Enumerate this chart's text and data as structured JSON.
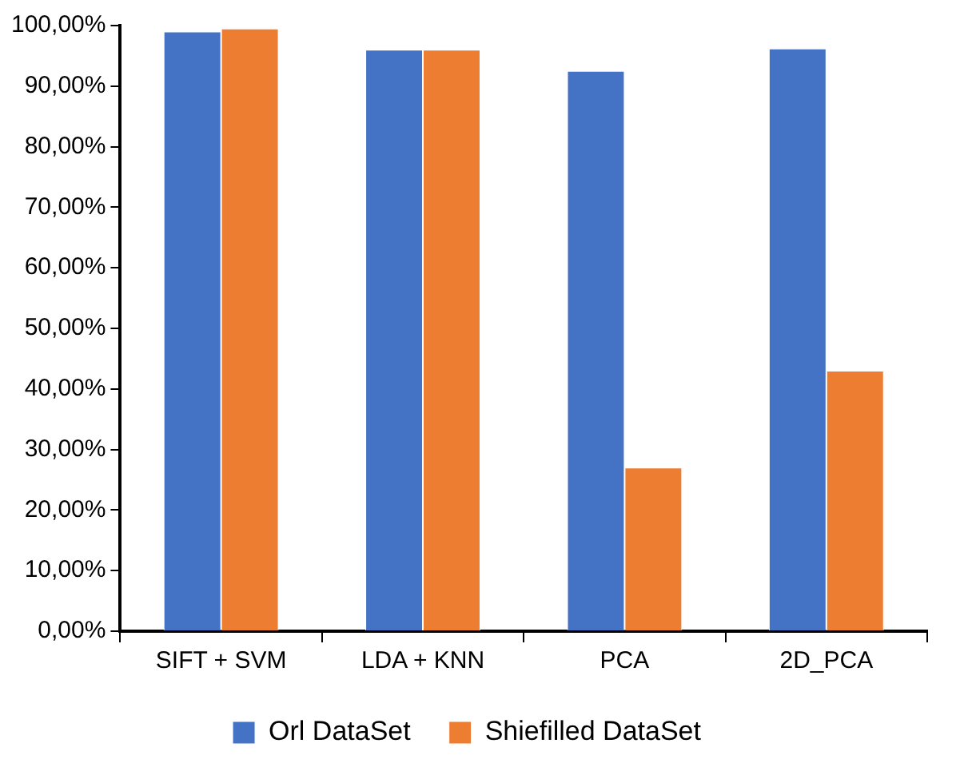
{
  "chart_data": {
    "type": "bar",
    "categories": [
      "SIFT + SVM",
      "LDA + KNN",
      "PCA",
      "2D_PCA"
    ],
    "series": [
      {
        "name": "Orl DataSet",
        "color": "#4472c4",
        "values": [
          99,
          96,
          92.5,
          96.2
        ]
      },
      {
        "name": "Shiefilled DataSet",
        "color": "#ed7d31",
        "values": [
          99.5,
          96,
          27,
          43
        ]
      }
    ],
    "ylim": [
      0,
      100
    ],
    "yticks": [
      {
        "value": 0,
        "label": "0,00%"
      },
      {
        "value": 10,
        "label": "10,00%"
      },
      {
        "value": 20,
        "label": "20,00%"
      },
      {
        "value": 30,
        "label": "30,00%"
      },
      {
        "value": 40,
        "label": "40,00%"
      },
      {
        "value": 50,
        "label": "50,00%"
      },
      {
        "value": 60,
        "label": "60,00%"
      },
      {
        "value": 70,
        "label": "70,00%"
      },
      {
        "value": 80,
        "label": "80,00%"
      },
      {
        "value": 90,
        "label": "90,00%"
      },
      {
        "value": 100,
        "label": "100,00%"
      }
    ],
    "grid": false,
    "legend": "bottom"
  }
}
